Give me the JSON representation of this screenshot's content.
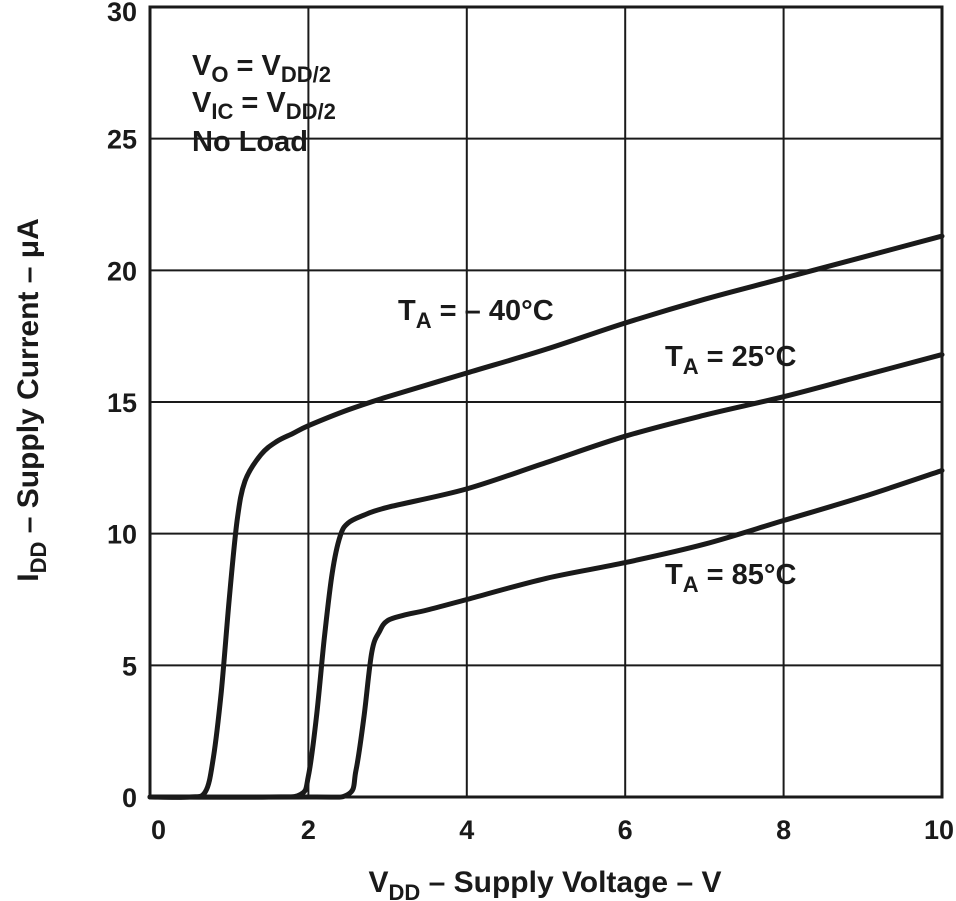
{
  "chart_data": {
    "type": "line",
    "xlabel_main": "V",
    "xlabel_sub": "DD",
    "xlabel_rest": " – Supply Voltage – V",
    "ylabel_main": "I",
    "ylabel_sub": "DD",
    "ylabel_rest": " – Supply Current – μA",
    "xlim": [
      0,
      10
    ],
    "ylim": [
      0,
      30
    ],
    "xticks": [
      0,
      2,
      4,
      6,
      8,
      10
    ],
    "yticks": [
      0,
      5,
      10,
      15,
      20,
      25,
      30
    ],
    "grid": true,
    "conditions": [
      {
        "main": "V",
        "sub": "O",
        "rest": " = V",
        "sub2": "DD/2"
      },
      {
        "main": "V",
        "sub": "IC",
        "rest": " = V",
        "sub2": "DD/2"
      },
      {
        "main": "No Load",
        "sub": "",
        "rest": "",
        "sub2": ""
      }
    ],
    "series": [
      {
        "name_main": "T",
        "name_sub": "A",
        "name_rest": " = – 40°C",
        "x": [
          0,
          0.5,
          0.7,
          0.8,
          0.9,
          1.0,
          1.1,
          1.2,
          1.4,
          1.6,
          1.8,
          2.0,
          2.5,
          3,
          4,
          5,
          6,
          7,
          8,
          9,
          10
        ],
        "y": [
          0,
          0,
          0.2,
          1.5,
          4.0,
          7.5,
          10.5,
          12.0,
          13.0,
          13.5,
          13.8,
          14.1,
          14.7,
          15.2,
          16.1,
          17.0,
          18.0,
          18.9,
          19.7,
          20.5,
          21.3
        ]
      },
      {
        "name_main": "T",
        "name_sub": "A",
        "name_rest": " = 25°C",
        "x": [
          0,
          1.5,
          1.9,
          2.0,
          2.1,
          2.2,
          2.3,
          2.4,
          2.5,
          2.7,
          3,
          4,
          5,
          6,
          7,
          8,
          9,
          10
        ],
        "y": [
          0,
          0,
          0.1,
          0.8,
          3.0,
          6.0,
          8.5,
          9.9,
          10.4,
          10.7,
          11.0,
          11.7,
          12.7,
          13.7,
          14.5,
          15.2,
          16.0,
          16.8
        ]
      },
      {
        "name_main": "T",
        "name_sub": "A",
        "name_rest": " = 85°C",
        "x": [
          0,
          2.0,
          2.5,
          2.6,
          2.7,
          2.8,
          2.9,
          3.0,
          3.2,
          3.5,
          4,
          5,
          6,
          7,
          8,
          9,
          10
        ],
        "y": [
          0,
          0,
          0.1,
          1.0,
          3.0,
          5.5,
          6.3,
          6.7,
          6.9,
          7.1,
          7.5,
          8.3,
          8.9,
          9.6,
          10.5,
          11.4,
          12.4
        ]
      }
    ]
  }
}
